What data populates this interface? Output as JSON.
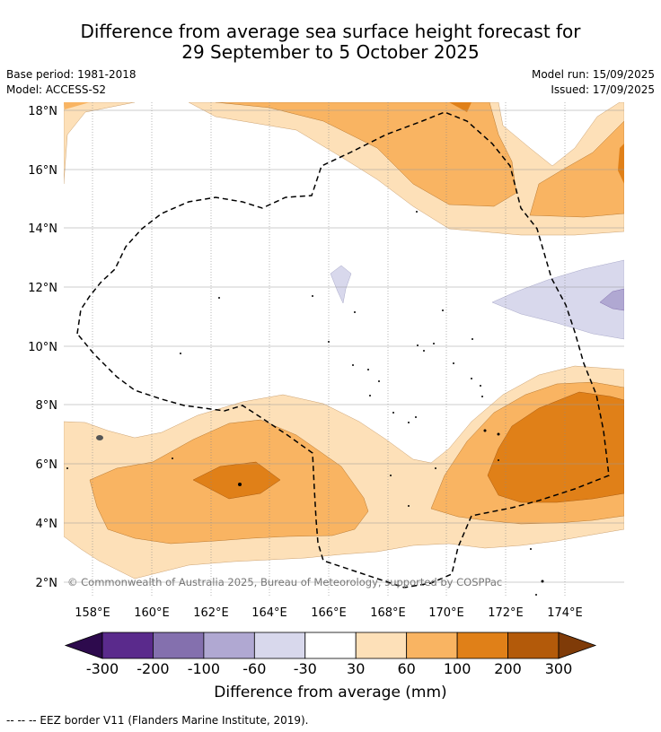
{
  "title": {
    "line1": "Difference from average sea surface height forecast for",
    "line2": "29 September to 5 October 2025"
  },
  "meta": {
    "base_period": "Base period: 1981-2018",
    "model": "Model: ACCESS-S2",
    "model_run": "Model run: 15/09/2025",
    "issued": "Issued: 17/09/2025"
  },
  "axes": {
    "lat_ticks": [
      "18°N",
      "16°N",
      "14°N",
      "12°N",
      "10°N",
      "8°N",
      "6°N",
      "4°N",
      "2°N"
    ],
    "lon_ticks": [
      "158°E",
      "160°E",
      "162°E",
      "164°E",
      "166°E",
      "168°E",
      "170°E",
      "172°E",
      "174°E"
    ]
  },
  "copyright": "© Commonwealth of Australia 2025, Bureau of Meteorology, supported by COSPPac",
  "colorbar": {
    "ticks": [
      "-300",
      "-200",
      "-100",
      "-60",
      "-30",
      "30",
      "60",
      "100",
      "200",
      "300"
    ],
    "colors": [
      "#2d0a4d",
      "#5a2a8c",
      "#8470ae",
      "#b0a8d2",
      "#d8d8ec",
      "#ffffff",
      "#fde0b8",
      "#f9b462",
      "#e08018",
      "#b35a0a",
      "#7f3b08"
    ],
    "label": "Difference from average (mm)"
  },
  "footnote": "--  --  -- EEZ border V11 (Flanders Marine Institute, 2019)."
}
